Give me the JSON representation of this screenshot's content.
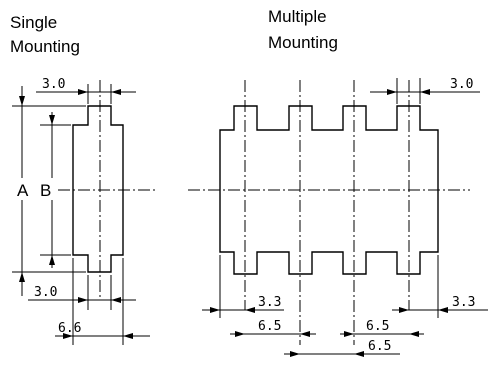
{
  "single": {
    "title_line1": "Single",
    "title_line2": "Mounting",
    "dim_top": "3.0",
    "label_a": "A",
    "label_b": "B",
    "dim_bottom": "3.0",
    "dim_overall": "6.6"
  },
  "multiple": {
    "title_line1": "Multiple",
    "title_line2": "Mounting",
    "dim_top": "3.0",
    "dim_left": "3.3",
    "dim_right": "3.3",
    "dim_pitch_left": "6.5",
    "dim_pitch_right": "6.5",
    "dim_pitch_bottom": "6.5"
  }
}
